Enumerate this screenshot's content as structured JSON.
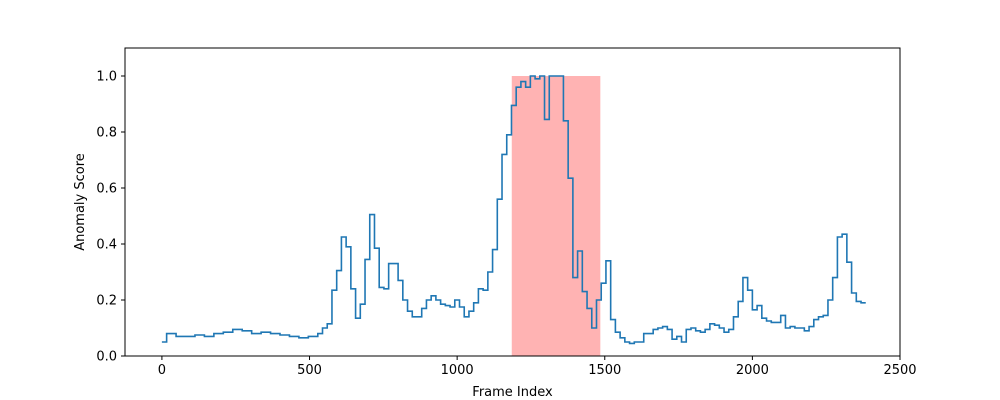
{
  "chart_data": {
    "type": "line",
    "title": "",
    "xlabel": "Frame Index",
    "ylabel": "Anomaly Score",
    "xlim": [
      -125,
      2500
    ],
    "ylim": [
      0,
      1.1
    ],
    "xticks": [
      0,
      500,
      1000,
      1500,
      2000,
      2500
    ],
    "yticks": [
      0.0,
      0.2,
      0.4,
      0.6,
      0.8,
      1.0
    ],
    "xtick_labels": [
      "0",
      "500",
      "1000",
      "1500",
      "2000",
      "2500"
    ],
    "ytick_labels": [
      "0.0",
      "0.2",
      "0.4",
      "0.6",
      "0.8",
      "1.0"
    ],
    "grid": false,
    "line_style": "steps",
    "colors": {
      "line": "#1f77b4",
      "highlight": "#ff9999"
    },
    "highlight_region": {
      "x_start": 1185,
      "x_end": 1485,
      "y_start": 0,
      "y_end": 1.0
    },
    "series": [
      {
        "x": [
          0,
          16,
          48,
          80,
          112,
          144,
          176,
          208,
          240,
          272,
          304,
          336,
          368,
          400,
          432,
          464,
          496,
          528,
          544,
          560,
          576,
          592,
          608,
          624,
          640,
          656,
          672,
          688,
          704,
          720,
          736,
          752,
          768,
          784,
          800,
          816,
          832,
          848,
          880,
          896,
          912,
          928,
          944,
          960,
          976,
          992,
          1008,
          1024,
          1040,
          1056,
          1072,
          1088,
          1104,
          1120,
          1136,
          1152,
          1168,
          1184,
          1200,
          1216,
          1232,
          1248,
          1264,
          1280,
          1296,
          1312,
          1328,
          1344,
          1360,
          1376,
          1392,
          1408,
          1424,
          1440,
          1456,
          1472,
          1488,
          1504,
          1520,
          1536,
          1552,
          1568,
          1584,
          1600,
          1632,
          1664,
          1680,
          1696,
          1712,
          1728,
          1744,
          1760,
          1776,
          1792,
          1808,
          1824,
          1840,
          1856,
          1872,
          1888,
          1904,
          1920,
          1936,
          1952,
          1968,
          1984,
          2000,
          2016,
          2032,
          2048,
          2064,
          2080,
          2096,
          2112,
          2128,
          2144,
          2160,
          2176,
          2192,
          2208,
          2224,
          2240,
          2256,
          2272,
          2288,
          2304,
          2320,
          2336,
          2352,
          2368,
          2384
        ],
        "values": [
          0.05,
          0.08,
          0.07,
          0.07,
          0.075,
          0.07,
          0.08,
          0.085,
          0.095,
          0.09,
          0.08,
          0.085,
          0.08,
          0.075,
          0.07,
          0.065,
          0.07,
          0.08,
          0.1,
          0.115,
          0.235,
          0.305,
          0.425,
          0.39,
          0.24,
          0.135,
          0.185,
          0.345,
          0.505,
          0.385,
          0.245,
          0.24,
          0.33,
          0.33,
          0.27,
          0.2,
          0.16,
          0.14,
          0.17,
          0.2,
          0.215,
          0.2,
          0.185,
          0.18,
          0.175,
          0.2,
          0.175,
          0.14,
          0.16,
          0.19,
          0.24,
          0.235,
          0.3,
          0.38,
          0.56,
          0.72,
          0.79,
          0.895,
          0.96,
          0.98,
          0.96,
          1.0,
          0.99,
          1.0,
          0.845,
          1.0,
          1.0,
          1.0,
          0.84,
          0.635,
          0.28,
          0.375,
          0.23,
          0.17,
          0.1,
          0.2,
          0.26,
          0.34,
          0.13,
          0.085,
          0.065,
          0.05,
          0.045,
          0.05,
          0.08,
          0.095,
          0.1,
          0.105,
          0.095,
          0.06,
          0.07,
          0.05,
          0.095,
          0.1,
          0.09,
          0.085,
          0.095,
          0.115,
          0.11,
          0.1,
          0.085,
          0.095,
          0.14,
          0.195,
          0.28,
          0.235,
          0.165,
          0.18,
          0.135,
          0.125,
          0.12,
          0.12,
          0.145,
          0.1,
          0.105,
          0.1,
          0.1,
          0.09,
          0.105,
          0.13,
          0.14,
          0.145,
          0.2,
          0.28,
          0.425,
          0.435,
          0.335,
          0.225,
          0.195,
          0.19,
          0.19
        ]
      }
    ]
  }
}
